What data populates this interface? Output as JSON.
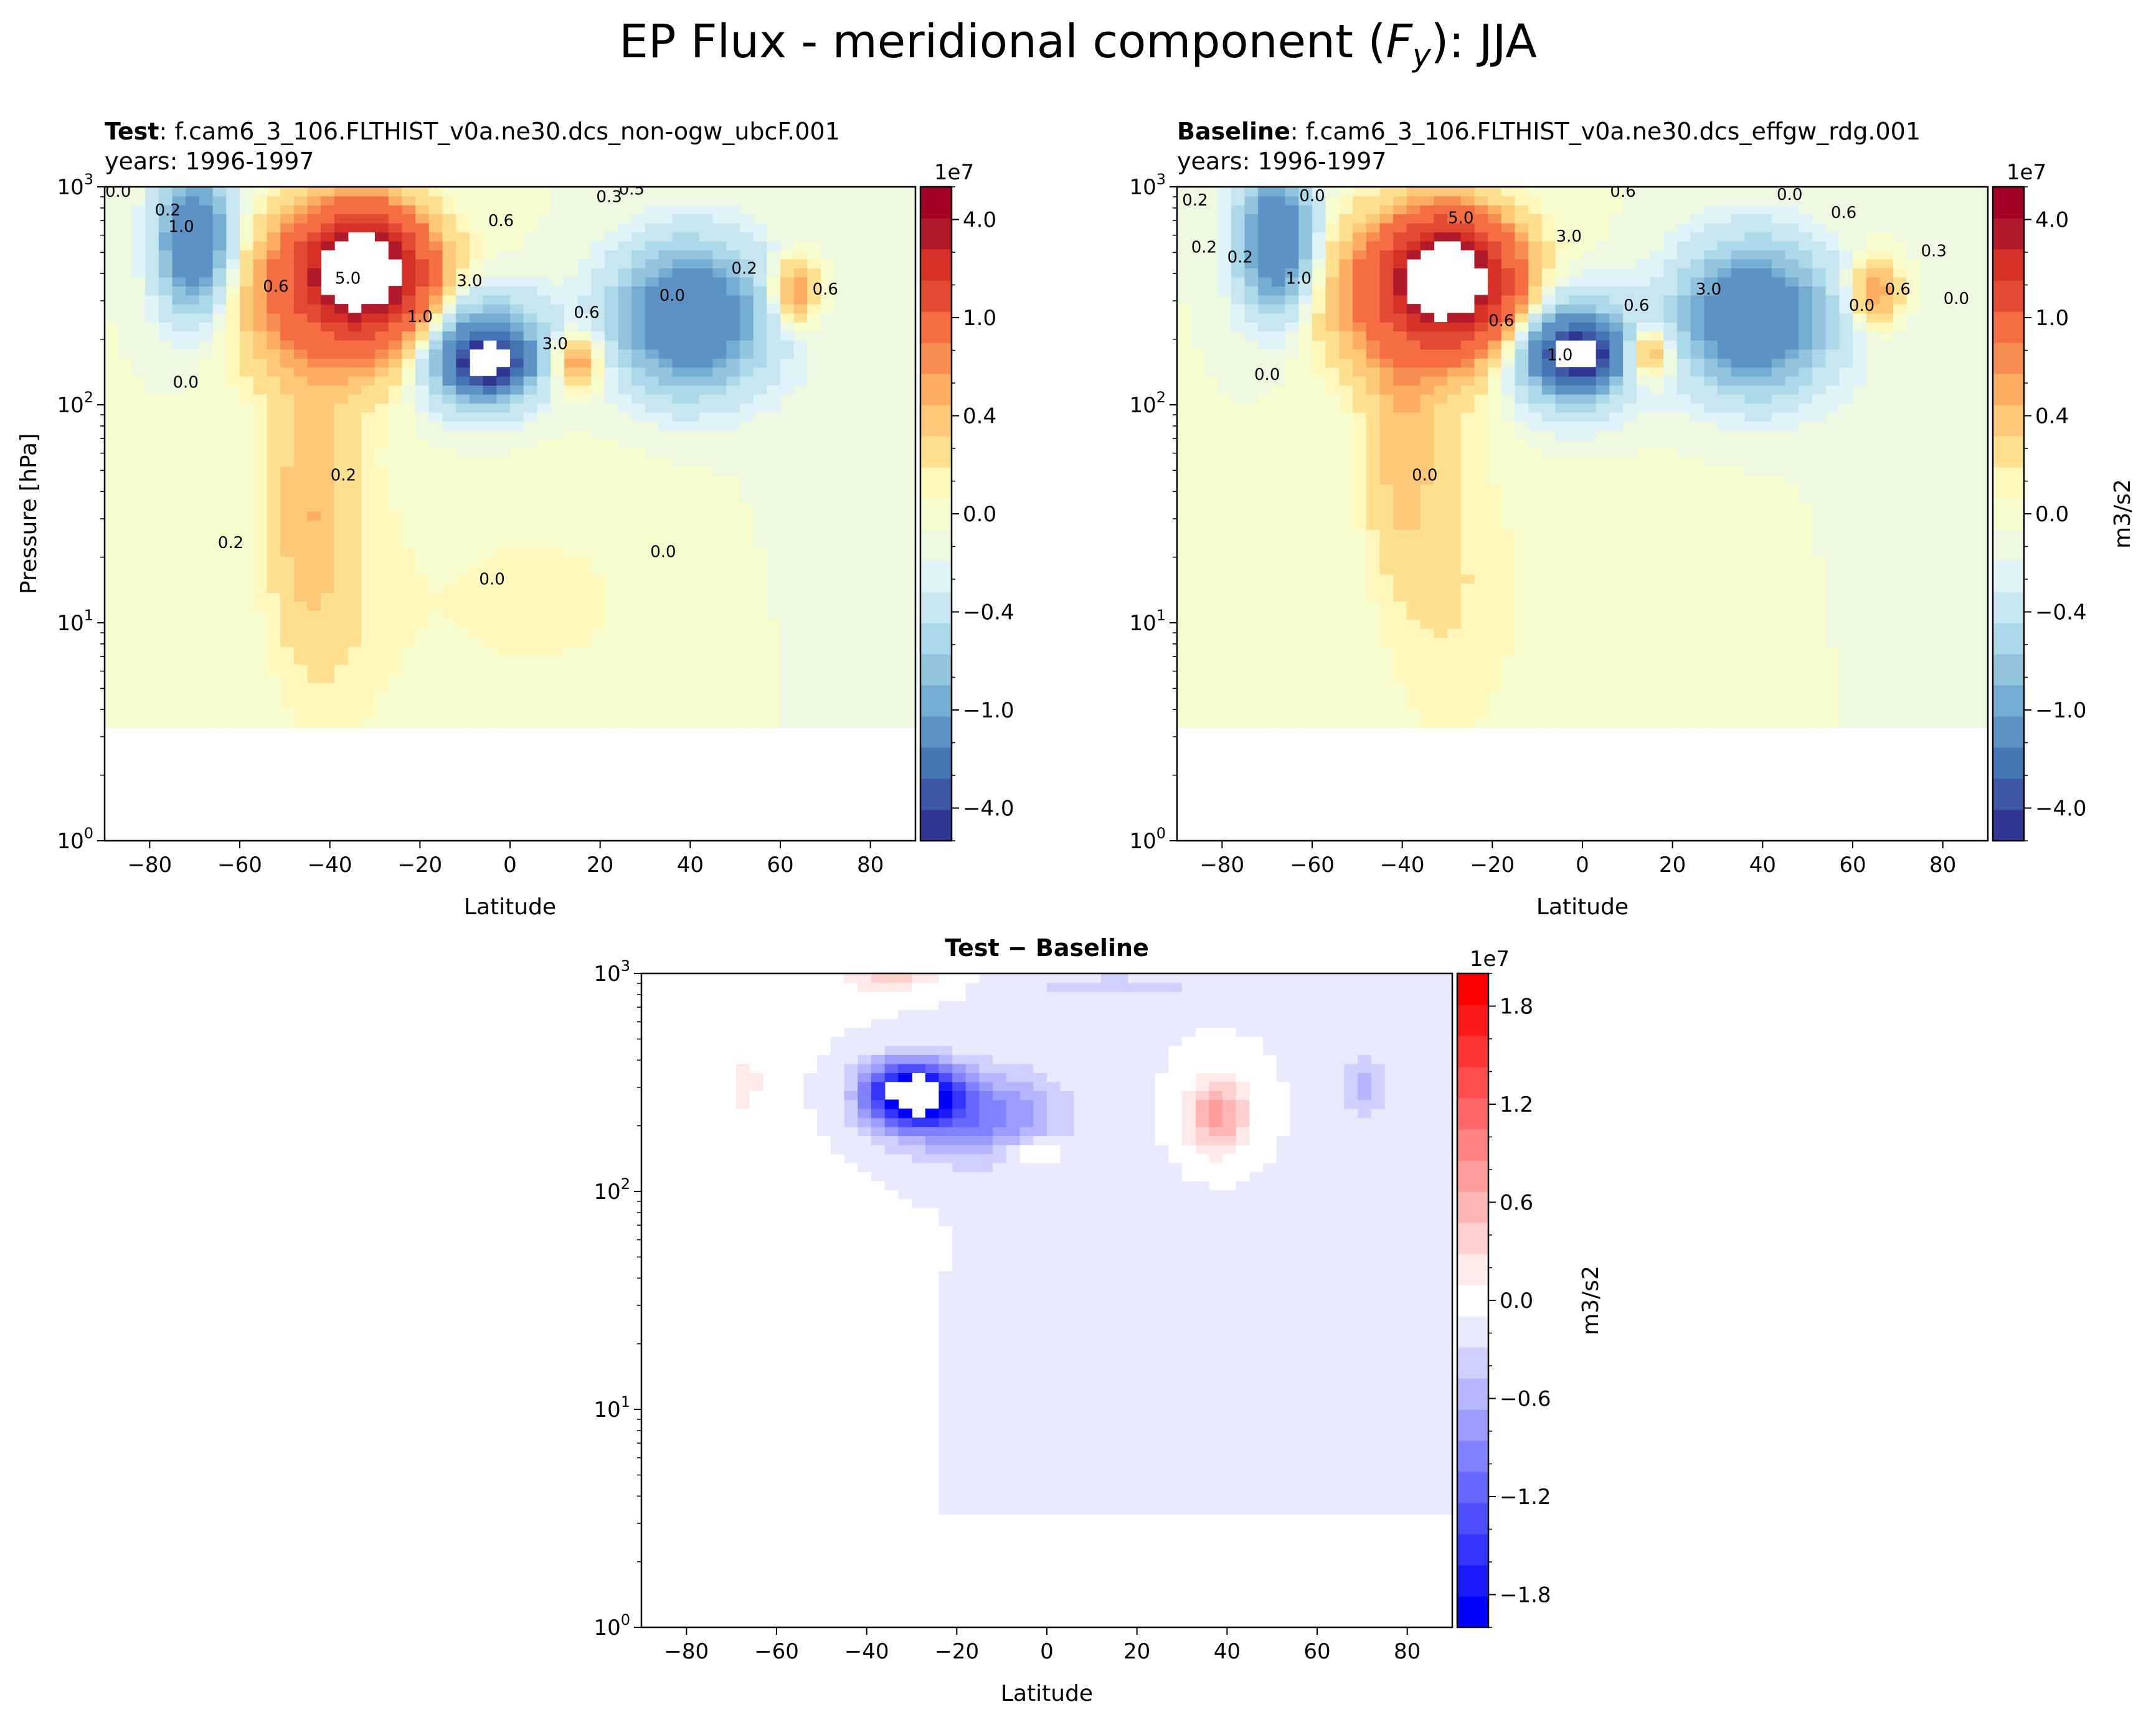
{
  "figure": {
    "suptitle": "EP Flux - meridional component (",
    "suptitle_var": "F",
    "suptitle_sub": "y",
    "suptitle_tail": "): JJA"
  },
  "chart_data": [
    {
      "type": "contour",
      "panel": "test",
      "title_bold": "Test",
      "title_rest": ": f.cam6_3_106.FLTHIST_v0a.ne30.dcs_non-ogw_ubcF.001",
      "title_line2": "years: 1996-1997",
      "xlabel": "Latitude",
      "ylabel": "Pressure [hPa]",
      "xlim": [
        -90,
        90
      ],
      "ylim": [
        1000,
        1
      ],
      "yscale": "log",
      "xticks": [
        "−80",
        "−60",
        "−40",
        "−20",
        "0",
        "20",
        "40",
        "60",
        "80"
      ],
      "xtick_values": [
        -80,
        -60,
        -40,
        -20,
        0,
        20,
        40,
        60,
        80
      ],
      "ytick_labels": [
        {
          "base": "10",
          "exp": "0",
          "value": 1
        },
        {
          "base": "10",
          "exp": "1",
          "value": 10
        },
        {
          "base": "10",
          "exp": "2",
          "value": 100
        },
        {
          "base": "10",
          "exp": "3",
          "value": 1000
        }
      ],
      "colormap": "RdYlBu_r",
      "colorbar": {
        "offset_label": "1e7",
        "units": "",
        "levels": [
          -5,
          -4,
          -3,
          -2,
          -1,
          -0.8,
          -0.6,
          -0.4,
          -0.2,
          -0.1,
          0,
          0.1,
          0.2,
          0.4,
          0.6,
          0.8,
          1,
          2,
          3,
          4,
          5
        ],
        "tick_labels": [
          "4.0",
          "1.0",
          "0.4",
          "0.0",
          "−0.4",
          "−1.0",
          "−4.0"
        ],
        "tick_values": [
          4,
          1,
          0.4,
          0,
          -0.4,
          -1,
          -4
        ]
      },
      "contour_labels": [
        "0.0",
        "0.0",
        "0.2",
        "0.2",
        "0.0",
        "0.6",
        "1.0",
        "5.0",
        "3.0",
        "0.6",
        "0.2",
        "3.0",
        "0.6",
        "0.0",
        "1.0",
        "0.2",
        "0.0",
        "0.3",
        "0.6",
        "0.5"
      ],
      "features": [
        {
          "name": "positive core (white, above max)",
          "lat": -33,
          "pressure_hPa": 400,
          "sign": "+"
        },
        {
          "name": "negative core (white, below min)",
          "lat": -5,
          "pressure_hPa": 150,
          "sign": "-"
        },
        {
          "name": "negative band",
          "lat": -70,
          "pressure_hPa": 600,
          "sign": "-"
        },
        {
          "name": "negative lobe",
          "lat": 40,
          "pressure_hPa": 250,
          "sign": "-"
        },
        {
          "name": "positive lobe",
          "lat": 15,
          "pressure_hPa": 160,
          "sign": "+"
        },
        {
          "name": "positive lobe",
          "lat": 63,
          "pressure_hPa": 330,
          "sign": "+"
        },
        {
          "name": "positive plume",
          "lat": -45,
          "pressure_hPa": 40,
          "sign": "+"
        }
      ]
    },
    {
      "type": "contour",
      "panel": "baseline",
      "title_bold": "Baseline",
      "title_rest": ": f.cam6_3_106.FLTHIST_v0a.ne30.dcs_effgw_rdg.001",
      "title_line2": "years: 1996-1997",
      "xlabel": "Latitude",
      "ylabel": "",
      "xlim": [
        -90,
        90
      ],
      "ylim": [
        1000,
        1
      ],
      "yscale": "log",
      "xticks": [
        "−80",
        "−60",
        "−40",
        "−20",
        "0",
        "20",
        "40",
        "60",
        "80"
      ],
      "xtick_values": [
        -80,
        -60,
        -40,
        -20,
        0,
        20,
        40,
        60,
        80
      ],
      "ytick_labels": [
        {
          "base": "10",
          "exp": "0",
          "value": 1
        },
        {
          "base": "10",
          "exp": "1",
          "value": 10
        },
        {
          "base": "10",
          "exp": "2",
          "value": 100
        },
        {
          "base": "10",
          "exp": "3",
          "value": 1000
        }
      ],
      "colormap": "RdYlBu_r",
      "colorbar": {
        "offset_label": "1e7",
        "units": "m3/s2",
        "levels": [
          -5,
          -4,
          -3,
          -2,
          -1,
          -0.8,
          -0.6,
          -0.4,
          -0.2,
          -0.1,
          0,
          0.1,
          0.2,
          0.4,
          0.6,
          0.8,
          1,
          2,
          3,
          4,
          5
        ],
        "tick_labels": [
          "4.0",
          "1.0",
          "0.4",
          "0.0",
          "−0.4",
          "−1.0",
          "−4.0"
        ],
        "tick_values": [
          4,
          1,
          0.4,
          0,
          -0.4,
          -1,
          -4
        ]
      },
      "contour_labels": [
        "0.0",
        "0.0",
        "1.0",
        "0.6",
        "3.0",
        "0.6",
        "0.2",
        "5.0",
        "0.0",
        "3.0",
        "0.6",
        "1.0",
        "0.0",
        "0.2",
        "0.6",
        "0.3",
        "0.0",
        "0.2",
        "0.6",
        "0.0"
      ],
      "features": [
        {
          "name": "positive core (white, above max)",
          "lat": -30,
          "pressure_hPa": 370,
          "sign": "+"
        },
        {
          "name": "negative core (white, below min)",
          "lat": -1,
          "pressure_hPa": 170,
          "sign": "-"
        },
        {
          "name": "negative band",
          "lat": -68,
          "pressure_hPa": 600,
          "sign": "-"
        },
        {
          "name": "negative lobe",
          "lat": 38,
          "pressure_hPa": 250,
          "sign": "-"
        },
        {
          "name": "positive lobe",
          "lat": 15,
          "pressure_hPa": 170,
          "sign": "+"
        },
        {
          "name": "positive lobe",
          "lat": 65,
          "pressure_hPa": 330,
          "sign": "+"
        },
        {
          "name": "positive plume",
          "lat": -40,
          "pressure_hPa": 60,
          "sign": "+"
        }
      ]
    },
    {
      "type": "contour",
      "panel": "difference",
      "title_bold": "Test − Baseline",
      "title_rest": "",
      "title_line2": "",
      "xlabel": "Latitude",
      "ylabel": "",
      "xlim": [
        -90,
        90
      ],
      "ylim": [
        1000,
        1
      ],
      "yscale": "log",
      "xticks": [
        "−80",
        "−60",
        "−40",
        "−20",
        "0",
        "20",
        "40",
        "60",
        "80"
      ],
      "xtick_values": [
        -80,
        -60,
        -40,
        -20,
        0,
        20,
        40,
        60,
        80
      ],
      "ytick_labels": [
        {
          "base": "10",
          "exp": "0",
          "value": 1
        },
        {
          "base": "10",
          "exp": "1",
          "value": 10
        },
        {
          "base": "10",
          "exp": "2",
          "value": 100
        },
        {
          "base": "10",
          "exp": "3",
          "value": 1000
        }
      ],
      "colormap": "bwr",
      "colorbar": {
        "offset_label": "1e7",
        "units": "m3/s2",
        "levels": [
          -2.0,
          -1.8,
          -1.6,
          -1.4,
          -1.2,
          -1.0,
          -0.8,
          -0.6,
          -0.4,
          -0.2,
          0,
          0.2,
          0.4,
          0.6,
          0.8,
          1.0,
          1.2,
          1.4,
          1.6,
          1.8,
          2.0
        ],
        "tick_labels": [
          "1.8",
          "1.2",
          "0.6",
          "0.0",
          "−0.6",
          "−1.2",
          "−1.8"
        ],
        "tick_values": [
          1.8,
          1.2,
          0.6,
          0,
          -0.6,
          -1.2,
          -1.8
        ]
      },
      "features": [
        {
          "name": "negative core (white, below min)",
          "lat": -30,
          "pressure_hPa": 280,
          "sign": "-"
        },
        {
          "name": "positive lobe",
          "lat": 38,
          "pressure_hPa": 220,
          "sign": "+"
        },
        {
          "name": "positive lobe",
          "lat": -3,
          "pressure_hPa": 150,
          "sign": "+"
        },
        {
          "name": "negative lobe",
          "lat": 70,
          "pressure_hPa": 300,
          "sign": "-"
        },
        {
          "name": "positive lobe",
          "lat": -67,
          "pressure_hPa": 300,
          "sign": "+"
        }
      ]
    }
  ],
  "colors": {
    "rdylbu": [
      "#313695",
      "#3f58a6",
      "#4575b4",
      "#5f92c4",
      "#74add1",
      "#93c4de",
      "#abd9e9",
      "#c7e6f0",
      "#e0f3f8",
      "#edf8e0",
      "#f7fcce",
      "#fff7bc",
      "#fee090",
      "#fdc979",
      "#fdae61",
      "#f88d52",
      "#f46d43",
      "#e34a33",
      "#d73027",
      "#b11a2a",
      "#a50026"
    ],
    "bwr": [
      "#0000ff",
      "#1a1aff",
      "#3434ff",
      "#4e4eff",
      "#6868ff",
      "#8282ff",
      "#9c9cff",
      "#b6b6ff",
      "#d0d0ff",
      "#eaeaff",
      "#ffffff",
      "#ffeaea",
      "#ffd0d0",
      "#ffb6b6",
      "#ff9c9c",
      "#ff8282",
      "#ff6868",
      "#ff4e4e",
      "#ff3434",
      "#ff1a1a",
      "#ff0000"
    ]
  }
}
